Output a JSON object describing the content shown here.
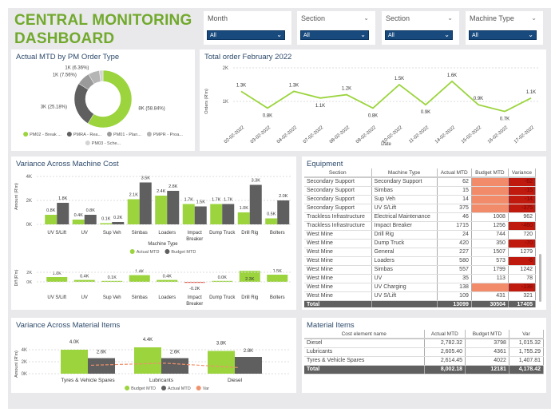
{
  "title": [
    "CENTRAL MONITORING",
    "DASHBOARD"
  ],
  "slicers": [
    {
      "label": "Month",
      "value": "All"
    },
    {
      "label": "Section",
      "value": "All"
    },
    {
      "label": "Section",
      "value": "All"
    },
    {
      "label": "Machine Type",
      "value": "All"
    }
  ],
  "colors": {
    "accent": "#9bd43d",
    "dark": "#5f5f5f",
    "title": "#71a92c",
    "slicer": "#184a7e",
    "neg": "#c0190e",
    "budgetFill": "#f28b6a"
  },
  "donut": {
    "title": "Actual MTD by PM Order Type",
    "chart_data": {
      "type": "pie",
      "slices": [
        {
          "name": "PM02 - Break ...",
          "value": 8,
          "label": "8K (58.84%)",
          "pct": 58.84,
          "color": "#9bd43d"
        },
        {
          "name": "PMRA - Rea...",
          "value": 3,
          "label": "3K (25.18%)",
          "pct": 25.18,
          "color": "#5f5f5f"
        },
        {
          "name": "PM01 - Plan...",
          "value": 1,
          "label": "1K (7.56%)",
          "pct": 7.56,
          "color": "#9a9a9a"
        },
        {
          "name": "PMPR - Proa...",
          "value": 1,
          "label": "1K (6.36%)",
          "pct": 6.36,
          "color": "#b5b5b5"
        },
        {
          "name": "PM03 - Sche...",
          "value": 0,
          "label": "",
          "pct": 2.06,
          "color": "#d4d4d4"
        }
      ]
    }
  },
  "line": {
    "title": "Total order February 2022",
    "chart_data": {
      "type": "line",
      "xlabel": "Date",
      "ylabel": "Orders (R'm)",
      "yticks": [
        "1K",
        "2K"
      ],
      "ylim": [
        0.5,
        2
      ],
      "x": [
        "02-02-2022",
        "03-02-2022",
        "04-02-2022",
        "07-02-2022",
        "08-02-2022",
        "09-02-2022",
        "10-02-2022",
        "11-02-2022",
        "14-02-2022",
        "15-02-2022",
        "16-02-2022",
        "17-02-2022"
      ],
      "values": [
        1.3,
        0.8,
        1.3,
        1.1,
        1.2,
        0.8,
        1.5,
        0.9,
        1.6,
        0.9,
        0.7,
        1.1
      ],
      "labels": [
        "1.3K",
        "0.8K",
        "1.3K",
        "1.1K",
        "1.2K",
        "0.8K",
        "1.5K",
        "0.9K",
        "1.6K",
        "0.9K",
        "0.7K",
        "1.1K"
      ]
    }
  },
  "machine": {
    "title": "Variance Across Machine Cost",
    "chart_data": [
      {
        "type": "bar",
        "xlabel": "Machine Type",
        "ylabel": "Amount (R'm)",
        "yticks": [
          "0K",
          "2K",
          "4K"
        ],
        "ylim": [
          0,
          4
        ],
        "categories": [
          "UV S/Lift",
          "UV",
          "Sup Veh",
          "Simbas",
          "Loaders",
          "Impact Breaker",
          "Dump Truck",
          "Drill Rig",
          "Bolters"
        ],
        "series": [
          {
            "name": "Actual  MTD",
            "values": [
              0.8,
              0.4,
              0.1,
              2.1,
              2.4,
              1.7,
              1.7,
              1.0,
              0.5
            ],
            "labels": [
              "0.8K",
              "0.4K",
              "0.1K",
              "2.1K",
              "2.4K",
              "1.7K",
              "1.7K",
              "1.0K",
              "0.5K"
            ]
          },
          {
            "name": "Budget MTD",
            "values": [
              1.8,
              0.8,
              0.2,
              3.5,
              2.8,
              1.5,
              1.7,
              3.3,
              2.0
            ],
            "labels": [
              "1.8K",
              "0.8K",
              "0.2K",
              "3.5K",
              "2.8K",
              "1.5K",
              "1.7K",
              "3.3K",
              "2.0K"
            ]
          }
        ]
      },
      {
        "type": "bar",
        "ylabel": "Diff (R'm)",
        "yticks": [
          "0K",
          "2K"
        ],
        "categories": [
          "UV S/Lift",
          "UV",
          "Sup Veh",
          "Simbas",
          "Loaders",
          "Impact Breaker",
          "Dump Truck",
          "Drill Rig",
          "Bolters"
        ],
        "values": [
          1.0,
          0.4,
          0.1,
          1.4,
          0.4,
          -0.2,
          0.0,
          2.3,
          1.5
        ],
        "labels": [
          "1.0K",
          "0.4K",
          "0.1K",
          "1.4K",
          "0.4K",
          "-0.2K",
          "0.0K",
          "2.3K",
          "1.5K"
        ]
      }
    ]
  },
  "equipment": {
    "title": "Equipment",
    "columns": [
      "Section",
      "Machine Type",
      "Actual MTD",
      "Budget MTD",
      "Variance"
    ],
    "rows": [
      [
        "Secondary Support",
        "Secondary Support",
        "62",
        "",
        "-62"
      ],
      [
        "Secondary Support",
        "Simbas",
        "15",
        "",
        "-15"
      ],
      [
        "Secondary Support",
        "Sup Veh",
        "14",
        "",
        "-14"
      ],
      [
        "Secondary Support",
        "UV S/Lift",
        "375",
        "",
        "-375"
      ],
      [
        "Trackless Infrastructure",
        "Electrical Maintenance",
        "46",
        "1008",
        "962"
      ],
      [
        "Trackless Infrastructure",
        "Impact Breaker",
        "1715",
        "1256",
        "-460"
      ],
      [
        "West Mine",
        "Drill Rig",
        "24",
        "744",
        "720"
      ],
      [
        "West Mine",
        "Dump Truck",
        "420",
        "350",
        "-70"
      ],
      [
        "West Mine",
        "General",
        "227",
        "1507",
        "1279"
      ],
      [
        "West Mine",
        "Loaders",
        "580",
        "573",
        "-6"
      ],
      [
        "West Mine",
        "Simbas",
        "557",
        "1799",
        "1242"
      ],
      [
        "West Mine",
        "UV",
        "35",
        "113",
        "78"
      ],
      [
        "West Mine",
        "UV Charging",
        "138",
        "",
        "-138"
      ],
      [
        "West Mine",
        "UV S/Lift",
        "109",
        "431",
        "321"
      ]
    ],
    "total": [
      "Total",
      "",
      "13099",
      "30504",
      "17405"
    ]
  },
  "material_chart": {
    "title": "Variance Across Material Items",
    "chart_data": {
      "type": "bar",
      "ylabel": "Amount (R'm)",
      "yticks": [
        "0K",
        "2K",
        "4K"
      ],
      "ylim": [
        0,
        5
      ],
      "categories": [
        "Tyres & Vehicle Spares",
        "Lubricants",
        "Diesel"
      ],
      "series": [
        {
          "name": "Budget MTD",
          "values": [
            4.0,
            4.4,
            3.8
          ],
          "labels": [
            "4.0K",
            "4.4K",
            "3.8K"
          ]
        },
        {
          "name": "Actual MTD",
          "values": [
            2.6,
            2.6,
            2.8
          ],
          "labels": [
            "2.6K",
            "2.6K",
            "2.8K"
          ]
        },
        {
          "name": "Var",
          "values": [
            1.41,
            1.76,
            1.02
          ]
        }
      ]
    }
  },
  "material_table": {
    "title": "Material Items",
    "columns": [
      "Cost element name",
      "Actual MTD",
      "Budget MTD",
      "Var"
    ],
    "rows": [
      [
        "Diesel",
        "2,782.32",
        "3798",
        "1,015.32"
      ],
      [
        "Lubricants",
        "2,605.40",
        "4361",
        "1,755.29"
      ],
      [
        "Tyres & Vehicle Spares",
        "2,614.45",
        "4022",
        "1,407.81"
      ]
    ],
    "total": [
      "Total",
      "8,002.18",
      "12181",
      "4,178.42"
    ]
  }
}
